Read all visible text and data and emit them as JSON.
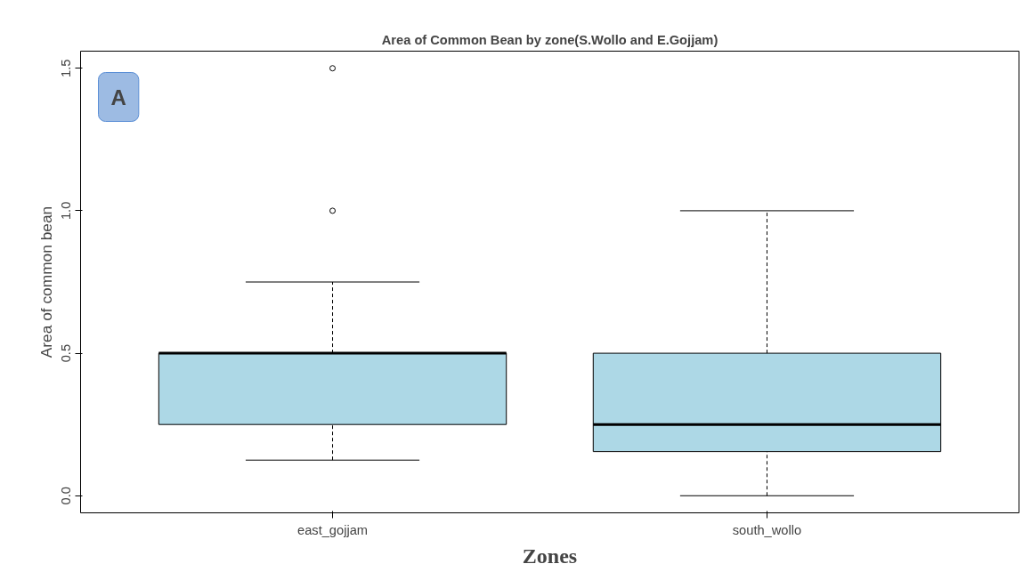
{
  "chart_data": {
    "type": "box",
    "title": "Area of Common Bean by zone(S.Wollo and E.Gojjam)",
    "xlabel": "Zones",
    "ylabel": "Area of common bean",
    "categories": [
      "east_gojjam",
      "south_wollo"
    ],
    "color": "#add8e6",
    "boxes": [
      {
        "low": 0.125,
        "q1": 0.25,
        "median": 0.5,
        "q3": 0.5,
        "high": 0.75,
        "outliers": [
          1.0,
          1.5
        ]
      },
      {
        "low": 0.0,
        "q1": 0.155,
        "median": 0.25,
        "q3": 0.5,
        "high": 1.0
      }
    ],
    "ylim": [
      -0.06,
      1.56
    ],
    "yticks": [
      {
        "value": 0,
        "label": "0.0"
      },
      0.5,
      {
        "value": 1,
        "label": "1.0"
      },
      1.5
    ],
    "grid": false,
    "annotations": [
      "A"
    ]
  }
}
